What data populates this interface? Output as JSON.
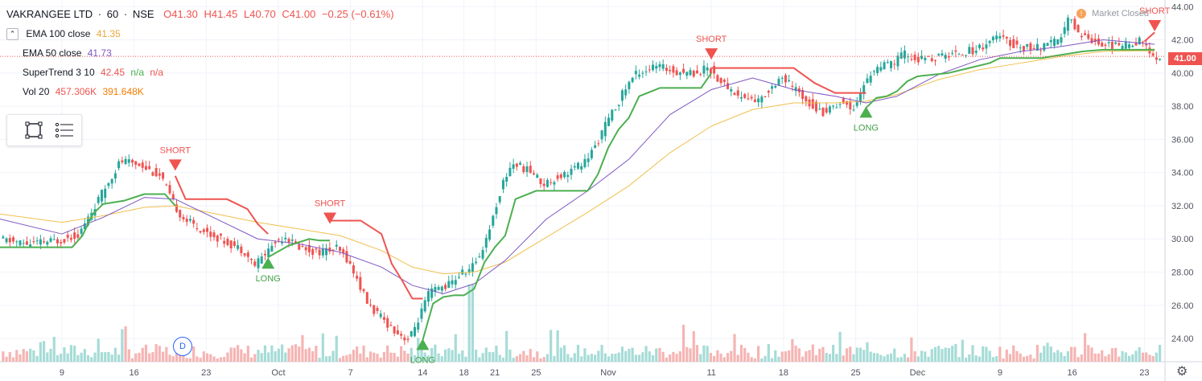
{
  "header": {
    "symbol": "VAKRANGEE LTD",
    "interval": "60",
    "exchange": "NSE",
    "open": "O41.30",
    "high": "H41.45",
    "low": "L40.70",
    "close": "C41.00",
    "change": "−0.25 (−0.61%)",
    "market_status": "Market Closed",
    "status_icon": "!"
  },
  "indicators": {
    "ema100_name": "EMA 100 close",
    "ema100_value": "41.35",
    "ema50_name": "EMA 50 close",
    "ema50_value": "41.73",
    "supertrend_name": "SuperTrend 3 10",
    "supertrend_value": "42.45",
    "supertrend_na1": "n/a",
    "supertrend_na2": "n/a",
    "vol_name": "Vol 20",
    "vol_value1": "457.306K",
    "vol_value2": "391.648K"
  },
  "bottom": {
    "event_marker": "D"
  },
  "colors": {
    "up": "#26a69a",
    "down": "#ef5350",
    "ema100": "#f0c04d",
    "ema50": "#7e57c2",
    "st_up": "#4caf50",
    "st_down": "#ef5350",
    "text": "#131722",
    "axis_text": "#50535e"
  },
  "chart_data": {
    "type": "candlestick",
    "y_axis_ticks": [
      "24.00",
      "26.00",
      "28.00",
      "30.00",
      "32.00",
      "34.00",
      "36.00",
      "38.00",
      "40.00",
      "42.00",
      "44.00"
    ],
    "ylim": [
      22.6,
      44.4
    ],
    "x_axis_ticks": [
      {
        "label": "9",
        "x": 9
      },
      {
        "label": "16",
        "x": 16
      },
      {
        "label": "23",
        "x": 23
      },
      {
        "label": "Oct",
        "x": 30
      },
      {
        "label": "7",
        "x": 37
      },
      {
        "label": "14",
        "x": 44
      },
      {
        "label": "18",
        "x": 48
      },
      {
        "label": "21",
        "x": 51
      },
      {
        "label": "25",
        "x": 55
      },
      {
        "label": "Nov",
        "x": 62
      },
      {
        "label": "11",
        "x": 72
      },
      {
        "label": "18",
        "x": 79
      },
      {
        "label": "25",
        "x": 86
      },
      {
        "label": "Dec",
        "x": 92
      },
      {
        "label": "9",
        "x": 100
      },
      {
        "label": "16",
        "x": 107
      },
      {
        "label": "23",
        "x": 114
      }
    ],
    "xlim": [
      3,
      116
    ],
    "last_price": "41.00",
    "price_path": [
      [
        3,
        30.0
      ],
      [
        6,
        29.7
      ],
      [
        9,
        29.9
      ],
      [
        11,
        30.3
      ],
      [
        13,
        32.5
      ],
      [
        15,
        34.7
      ],
      [
        17,
        34.5
      ],
      [
        19,
        33.7
      ],
      [
        20,
        32.3
      ],
      [
        21,
        31.3
      ],
      [
        23,
        30.5
      ],
      [
        25,
        29.9
      ],
      [
        27,
        29.3
      ],
      [
        28,
        28.4
      ],
      [
        29,
        29.1
      ],
      [
        30,
        29.8
      ],
      [
        31,
        30.2
      ],
      [
        32,
        29.6
      ],
      [
        34,
        29.2
      ],
      [
        36,
        29.4
      ],
      [
        37,
        28.8
      ],
      [
        38,
        27.5
      ],
      [
        39,
        26.1
      ],
      [
        40,
        25.4
      ],
      [
        42,
        24.3
      ],
      [
        43,
        23.9
      ],
      [
        44,
        25.3
      ],
      [
        45,
        26.8
      ],
      [
        47,
        27.3
      ],
      [
        48,
        27.9
      ],
      [
        49,
        28.2
      ],
      [
        50,
        29.2
      ],
      [
        51,
        31.0
      ],
      [
        52,
        33.2
      ],
      [
        53,
        34.6
      ],
      [
        55,
        34.0
      ],
      [
        56,
        33.3
      ],
      [
        58,
        33.9
      ],
      [
        60,
        34.6
      ],
      [
        61,
        35.5
      ],
      [
        62,
        36.8
      ],
      [
        63,
        37.9
      ],
      [
        64,
        39.1
      ],
      [
        65,
        40.0
      ],
      [
        67,
        40.4
      ],
      [
        69,
        40.1
      ],
      [
        71,
        40.0
      ],
      [
        72,
        40.4
      ],
      [
        73,
        39.6
      ],
      [
        75,
        38.6
      ],
      [
        77,
        38.3
      ],
      [
        79,
        39.8
      ],
      [
        81,
        38.7
      ],
      [
        83,
        37.6
      ],
      [
        85,
        38.3
      ],
      [
        86,
        37.8
      ],
      [
        87,
        39.1
      ],
      [
        88,
        40.2
      ],
      [
        90,
        40.6
      ],
      [
        91,
        41.2
      ],
      [
        92,
        40.8
      ],
      [
        94,
        40.9
      ],
      [
        96,
        41.2
      ],
      [
        98,
        41.4
      ],
      [
        100,
        42.2
      ],
      [
        102,
        41.6
      ],
      [
        104,
        41.5
      ],
      [
        106,
        41.9
      ],
      [
        107,
        43.3
      ],
      [
        108,
        42.4
      ],
      [
        110,
        41.8
      ],
      [
        112,
        41.6
      ],
      [
        114,
        42.0
      ],
      [
        115,
        41.0
      ]
    ],
    "ema50": [
      [
        3,
        31.2
      ],
      [
        9,
        30.3
      ],
      [
        13,
        31.3
      ],
      [
        17,
        32.5
      ],
      [
        20,
        32.4
      ],
      [
        24,
        31.2
      ],
      [
        28,
        30.0
      ],
      [
        32,
        29.7
      ],
      [
        36,
        29.2
      ],
      [
        40,
        28.3
      ],
      [
        43,
        27.2
      ],
      [
        46,
        26.7
      ],
      [
        49,
        27.3
      ],
      [
        52,
        28.7
      ],
      [
        56,
        31.2
      ],
      [
        60,
        32.9
      ],
      [
        64,
        34.8
      ],
      [
        68,
        37.5
      ],
      [
        72,
        39.0
      ],
      [
        76,
        39.7
      ],
      [
        80,
        39.0
      ],
      [
        84,
        38.6
      ],
      [
        87,
        38.2
      ],
      [
        90,
        38.6
      ],
      [
        94,
        39.9
      ],
      [
        98,
        40.8
      ],
      [
        102,
        41.3
      ],
      [
        106,
        41.6
      ],
      [
        110,
        42.0
      ],
      [
        115,
        41.73
      ]
    ],
    "ema100": [
      [
        3,
        31.5
      ],
      [
        9,
        31.0
      ],
      [
        13,
        31.4
      ],
      [
        17,
        31.9
      ],
      [
        20,
        32.0
      ],
      [
        24,
        31.5
      ],
      [
        28,
        31.0
      ],
      [
        32,
        30.6
      ],
      [
        36,
        30.2
      ],
      [
        40,
        29.3
      ],
      [
        43,
        28.3
      ],
      [
        46,
        27.9
      ],
      [
        49,
        28.0
      ],
      [
        52,
        28.6
      ],
      [
        56,
        30.1
      ],
      [
        60,
        31.6
      ],
      [
        64,
        33.2
      ],
      [
        68,
        35.2
      ],
      [
        72,
        36.8
      ],
      [
        76,
        37.8
      ],
      [
        80,
        38.2
      ],
      [
        84,
        38.2
      ],
      [
        87,
        38.3
      ],
      [
        90,
        38.7
      ],
      [
        94,
        39.6
      ],
      [
        98,
        40.2
      ],
      [
        102,
        40.6
      ],
      [
        106,
        41.0
      ],
      [
        110,
        41.3
      ],
      [
        115,
        41.35
      ]
    ],
    "supertrend_up": [
      [
        [
          3,
          29.5
        ],
        [
          10,
          29.5
        ],
        [
          11,
          30.2
        ],
        [
          12,
          31.5
        ],
        [
          13,
          32.1
        ],
        [
          15,
          32.3
        ],
        [
          17,
          32.7
        ],
        [
          19,
          32.7
        ],
        [
          20,
          32.0
        ]
      ],
      [
        [
          29,
          28.9
        ],
        [
          31,
          29.6
        ],
        [
          33,
          30.0
        ],
        [
          34,
          29.9
        ],
        [
          35,
          29.9
        ]
      ],
      [
        [
          44,
          23.9
        ],
        [
          45,
          26.1
        ],
        [
          46,
          26.5
        ],
        [
          47,
          26.6
        ],
        [
          48,
          26.6
        ],
        [
          49,
          27.0
        ],
        [
          50,
          28.6
        ],
        [
          51,
          29.5
        ],
        [
          52,
          30.2
        ],
        [
          53,
          32.4
        ],
        [
          55,
          32.9
        ],
        [
          57,
          32.9
        ],
        [
          60,
          32.9
        ],
        [
          61,
          33.9
        ],
        [
          62,
          35.5
        ],
        [
          63,
          36.6
        ],
        [
          64,
          37.3
        ],
        [
          65,
          38.6
        ],
        [
          67,
          39.1
        ],
        [
          71,
          39.1
        ],
        [
          72,
          40.0
        ]
      ],
      [
        [
          87,
          37.9
        ],
        [
          88,
          38.5
        ],
        [
          89,
          38.6
        ],
        [
          90,
          38.9
        ],
        [
          91,
          39.5
        ],
        [
          92,
          39.8
        ],
        [
          95,
          40.0
        ],
        [
          97,
          40.3
        ],
        [
          99,
          40.6
        ],
        [
          100,
          40.9
        ],
        [
          102,
          40.9
        ],
        [
          104,
          40.9
        ],
        [
          106,
          41.1
        ],
        [
          108,
          41.3
        ],
        [
          110,
          41.4
        ],
        [
          113,
          41.4
        ],
        [
          115,
          41.4
        ]
      ]
    ],
    "supertrend_down": [
      [
        [
          20,
          33.8
        ],
        [
          21,
          32.4
        ],
        [
          23,
          32.4
        ],
        [
          25,
          32.4
        ],
        [
          27,
          31.8
        ],
        [
          28,
          30.9
        ],
        [
          29,
          30.3
        ]
      ],
      [
        [
          35,
          31.1
        ],
        [
          38,
          31.1
        ],
        [
          40,
          30.3
        ],
        [
          41,
          28.5
        ],
        [
          42,
          27.5
        ],
        [
          43,
          26.4
        ],
        [
          44,
          26.4
        ]
      ],
      [
        [
          72,
          40.3
        ],
        [
          76,
          40.3
        ],
        [
          80,
          40.3
        ],
        [
          82,
          39.4
        ],
        [
          84,
          38.8
        ],
        [
          86,
          38.8
        ],
        [
          87,
          38.8
        ]
      ],
      [
        [
          114,
          41.9
        ],
        [
          115,
          42.45
        ]
      ]
    ],
    "signals": [
      {
        "type": "SHORT",
        "x": 20,
        "y": 34.4
      },
      {
        "type": "LONG",
        "x": 29,
        "y": 28.5
      },
      {
        "type": "SHORT",
        "x": 35,
        "y": 31.2
      },
      {
        "type": "LONG",
        "x": 44,
        "y": 23.6
      },
      {
        "type": "SHORT",
        "x": 72,
        "y": 41.1
      },
      {
        "type": "LONG",
        "x": 87,
        "y": 37.6
      },
      {
        "type": "SHORT",
        "x": 115,
        "y": 42.8
      }
    ]
  }
}
